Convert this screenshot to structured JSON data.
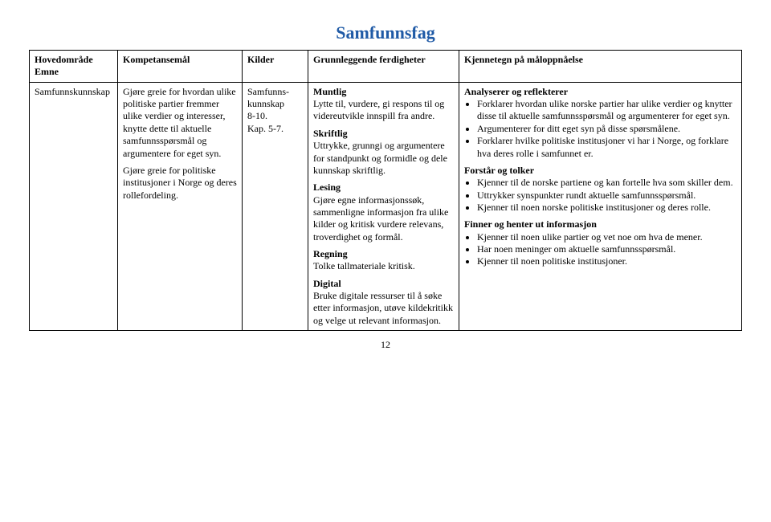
{
  "title": "Samfunnsfag",
  "title_color": "#1f5aa6",
  "headers": {
    "col1a": "Hovedområde",
    "col1b": "Emne",
    "col2": "Kompetansemål",
    "col3": "Kilder",
    "col4": "Grunnleggende ferdigheter",
    "col5": "Kjennetegn på måloppnåelse"
  },
  "row": {
    "emne": "Samfunnskunnskap",
    "kompetansemal": {
      "p1": "Gjøre greie for hvordan ulike politiske partier fremmer ulike verdier og interesser, knytte dette til aktuelle samfunnsspørsmål og argumentere for eget syn.",
      "p2": "Gjøre greie for politiske institusjoner i Norge og deres rollefordeling."
    },
    "kilder": {
      "l1": "Samfunns-",
      "l2": "kunnskap",
      "l3": "8-10.",
      "l4": "Kap. 5-7."
    },
    "ferdigheter": {
      "muntlig_h": "Muntlig",
      "muntlig": "Lytte til, vurdere, gi respons til og videreutvikle innspill fra andre.",
      "skriftlig_h": "Skriftlig",
      "skriftlig": "Uttrykke, grunngi og argumentere for standpunkt og formidle og dele kunnskap skriftlig.",
      "lesing_h": "Lesing",
      "lesing": "Gjøre egne informasjonssøk, sammenligne informasjon fra ulike kilder og kritisk vurdere relevans, troverdighet og formål.",
      "regning_h": "Regning",
      "regning": "Tolke tallmateriale kritisk.",
      "digital_h": "Digital",
      "digital": "Bruke digitale ressurser til å søke etter informasjon, utøve kildekritikk og velge ut relevant informasjon."
    },
    "kjennetegn": {
      "analyserer_h": "Analyserer og reflekterer",
      "analyserer": [
        "Forklarer hvordan ulike norske partier har ulike verdier og knytter disse til aktuelle samfunnsspørsmål og argumenterer for eget syn.",
        "Argumenterer for ditt eget syn på disse spørsmålene.",
        "Forklarer hvilke politiske institusjoner vi har i Norge, og forklare hva deres rolle i samfunnet er."
      ],
      "forstar_h": "Forstår og tolker",
      "forstar": [
        "Kjenner til de norske partiene og kan fortelle hva som skiller dem.",
        "Uttrykker synspunkter rundt aktuelle samfunnsspørsmål.",
        "Kjenner til noen norske politiske institusjoner og deres rolle."
      ],
      "finner_h": "Finner og henter ut informasjon",
      "finner": [
        "Kjenner til noen ulike partier og vet noe om hva de mener.",
        "Har noen meninger om aktuelle samfunnsspørsmål.",
        "Kjenner til noen politiske institusjoner."
      ]
    }
  },
  "page_number": "12"
}
